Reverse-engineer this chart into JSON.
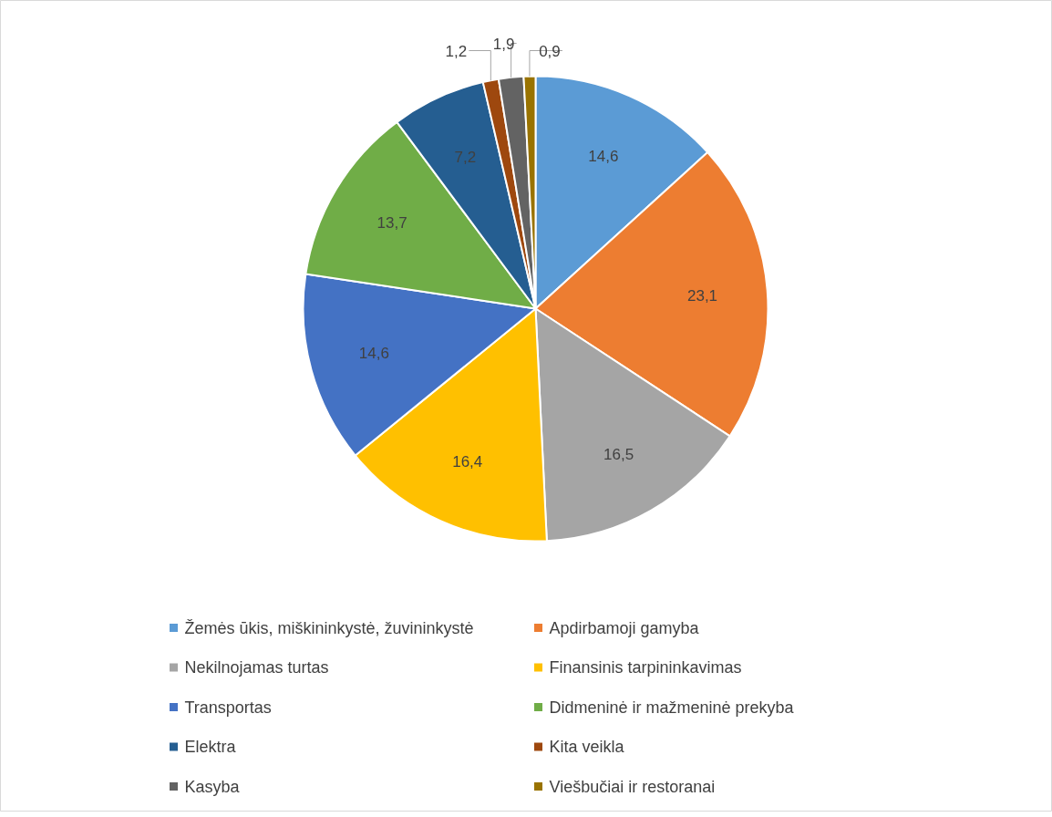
{
  "chart_data": {
    "type": "pie",
    "categories": [
      "Žemės ūkis, miškininkystė, žuvininkystė",
      "Apdirbamoji gamyba",
      "Nekilnojamas turtas",
      "Finansinis tarpininkavimas",
      "Transportas",
      "Didmeninė ir mažmeninė prekyba",
      "Elektra",
      "Kita veikla",
      "Kasyba",
      "Viešbučiai ir restoranai"
    ],
    "values": [
      14.6,
      23.1,
      16.5,
      16.4,
      14.6,
      13.7,
      7.2,
      1.2,
      1.9,
      0.9
    ],
    "value_labels": [
      "14,6",
      "23,1",
      "16,5",
      "16,4",
      "14,6",
      "13,7",
      "7,2",
      "1,2",
      "1,9",
      "0,9"
    ],
    "colors": [
      "#5b9bd5",
      "#ed7d31",
      "#a5a5a5",
      "#ffc000",
      "#4472c4",
      "#70ad47",
      "#255e91",
      "#9e480e",
      "#636363",
      "#997300"
    ],
    "legend": "bottom"
  }
}
